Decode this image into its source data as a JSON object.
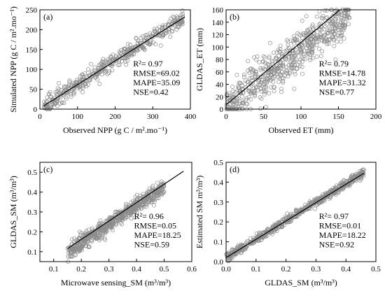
{
  "chart_data": [
    {
      "type": "scatter",
      "panel_label": "(a)",
      "xlabel": "Observed NPP  (g C / m².mo⁻¹)",
      "ylabel": "Simulated NPP (g C / m².mo⁻¹)",
      "xlim": [
        0,
        400
      ],
      "ylim": [
        0,
        250
      ],
      "xticks": [
        0,
        100,
        200,
        300,
        400
      ],
      "yticks": [
        0,
        50,
        100,
        150,
        200,
        250
      ],
      "fit_line": {
        "x": [
          10,
          385
        ],
        "y": [
          8,
          232
        ]
      },
      "stats": {
        "r2": "R²= 0.97",
        "rmse": "RMSE=69.02",
        "mape": "MAPE=35.09",
        "nse": "NSE=0.42"
      },
      "point_cloud": {
        "x_range": [
          10,
          380
        ],
        "slope": 0.6,
        "intercept": 2,
        "noise": 10,
        "n_points": 480,
        "marker": "open-circle",
        "marker_color": "#8c8c8c"
      }
    },
    {
      "type": "scatter",
      "panel_label": "(b)",
      "xlabel": "Observed ET (mm)",
      "ylabel": "GLDAS_ET (mm)",
      "xlim": [
        0,
        200
      ],
      "ylim": [
        0,
        160
      ],
      "xticks": [
        0,
        50,
        100,
        150,
        200
      ],
      "yticks": [
        0,
        20,
        40,
        60,
        80,
        100,
        120,
        140,
        160
      ],
      "fit_line": {
        "x": [
          0,
          152
        ],
        "y": [
          7,
          160
        ]
      },
      "stats": {
        "r2": "R²= 0.79",
        "rmse": "RMSE=14.78",
        "mape": "MAPE=31.32",
        "nse": "NSE=0.77"
      },
      "point_cloud": {
        "x_range": [
          0,
          165
        ],
        "slope": 0.9,
        "intercept": 5,
        "noise": 18,
        "n_points": 650,
        "marker": "open-circle",
        "marker_color": "#8c8c8c"
      }
    },
    {
      "type": "scatter",
      "panel_label": "(c)",
      "xlabel": "Microwave sensing_SM  (m³/m³)",
      "ylabel": "GLDAS_SM (m³/m³)",
      "xlim": [
        0.05,
        0.6
      ],
      "ylim": [
        0.05,
        0.55
      ],
      "xticks": [
        0.1,
        0.2,
        0.3,
        0.4,
        0.5,
        0.6
      ],
      "yticks": [
        0.1,
        0.2,
        0.3,
        0.4,
        0.5
      ],
      "fit_line": {
        "x": [
          0.15,
          0.57
        ],
        "y": [
          0.115,
          0.505
        ]
      },
      "stats": {
        "r2": "R²= 0.96",
        "rmse": "RMSE=0.05",
        "mape": "MAPE=18.25",
        "nse": "NSE=0.59"
      },
      "point_cloud": {
        "x_range": [
          0.15,
          0.5
        ],
        "slope": 0.93,
        "intercept": -0.04,
        "noise": 0.02,
        "n_points": 650,
        "marker": "open-circle",
        "marker_color": "#8c8c8c"
      }
    },
    {
      "type": "scatter",
      "panel_label": "(d)",
      "xlabel": "GLDAS_SM  (m³/m³)",
      "ylabel": "Estimated SM  m³/m³)",
      "xlim": [
        0,
        0.5
      ],
      "ylim": [
        0,
        0.5
      ],
      "xticks": [
        0.0,
        0.1,
        0.2,
        0.3,
        0.4,
        0.5
      ],
      "yticks": [
        0.0,
        0.1,
        0.2,
        0.3,
        0.4,
        0.5
      ],
      "fit_line": {
        "x": [
          0.0,
          0.46
        ],
        "y": [
          0.02,
          0.445
        ]
      },
      "stats": {
        "r2": "R²= 0.97",
        "rmse": "RMSE=0.01",
        "mape": "MAPE=18.22",
        "nse": "NSE=0.92"
      },
      "point_cloud": {
        "x_range": [
          0.0,
          0.46
        ],
        "slope": 0.93,
        "intercept": 0.02,
        "noise": 0.01,
        "n_points": 650,
        "marker": "open-circle",
        "marker_color": "#8c8c8c"
      }
    }
  ]
}
